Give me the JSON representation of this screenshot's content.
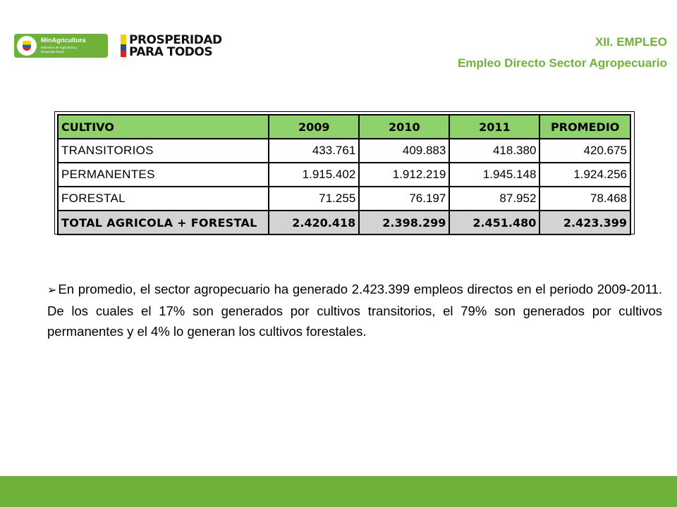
{
  "logos": {
    "ministry_name": "MinAgricultura",
    "ministry_sub": "Ministerio de Agricultura y Desarrollo Rural",
    "campaign_line1": "PROSPERIDAD",
    "campaign_line2": "PARA TODOS"
  },
  "header": {
    "section": "XII. EMPLEO",
    "subtitle": "Empleo Directo Sector Agropecuario"
  },
  "table": {
    "columns": [
      "CULTIVO",
      "2009",
      "2010",
      "2011",
      "PROMEDIO"
    ],
    "rows": [
      [
        "TRANSITORIOS",
        "433.761",
        "409.883",
        "418.380",
        "420.675"
      ],
      [
        "PERMANENTES",
        "1.915.402",
        "1.912.219",
        "1.945.148",
        "1.924.256"
      ],
      [
        "FORESTAL",
        "71.255",
        "76.197",
        "87.952",
        "78.468"
      ]
    ],
    "total": [
      "TOTAL AGRICOLA + FORESTAL",
      "2.420.418",
      "2.398.299",
      "2.451.480",
      "2.423.399"
    ]
  },
  "paragraph": {
    "bullet": "➢",
    "text": "En promedio, el sector agropecuario ha generado 2.423.399 empleos directos en el periodo 2009-2011. De los cuales el 17% son generados por cultivos transitorios, el 79% son generados por cultivos permanentes y el 4% lo generan los cultivos forestales."
  },
  "colors": {
    "brand_green": "#6fb23a",
    "header_row_green": "#8fd16a",
    "total_row_gray": "#d3d3d3"
  }
}
